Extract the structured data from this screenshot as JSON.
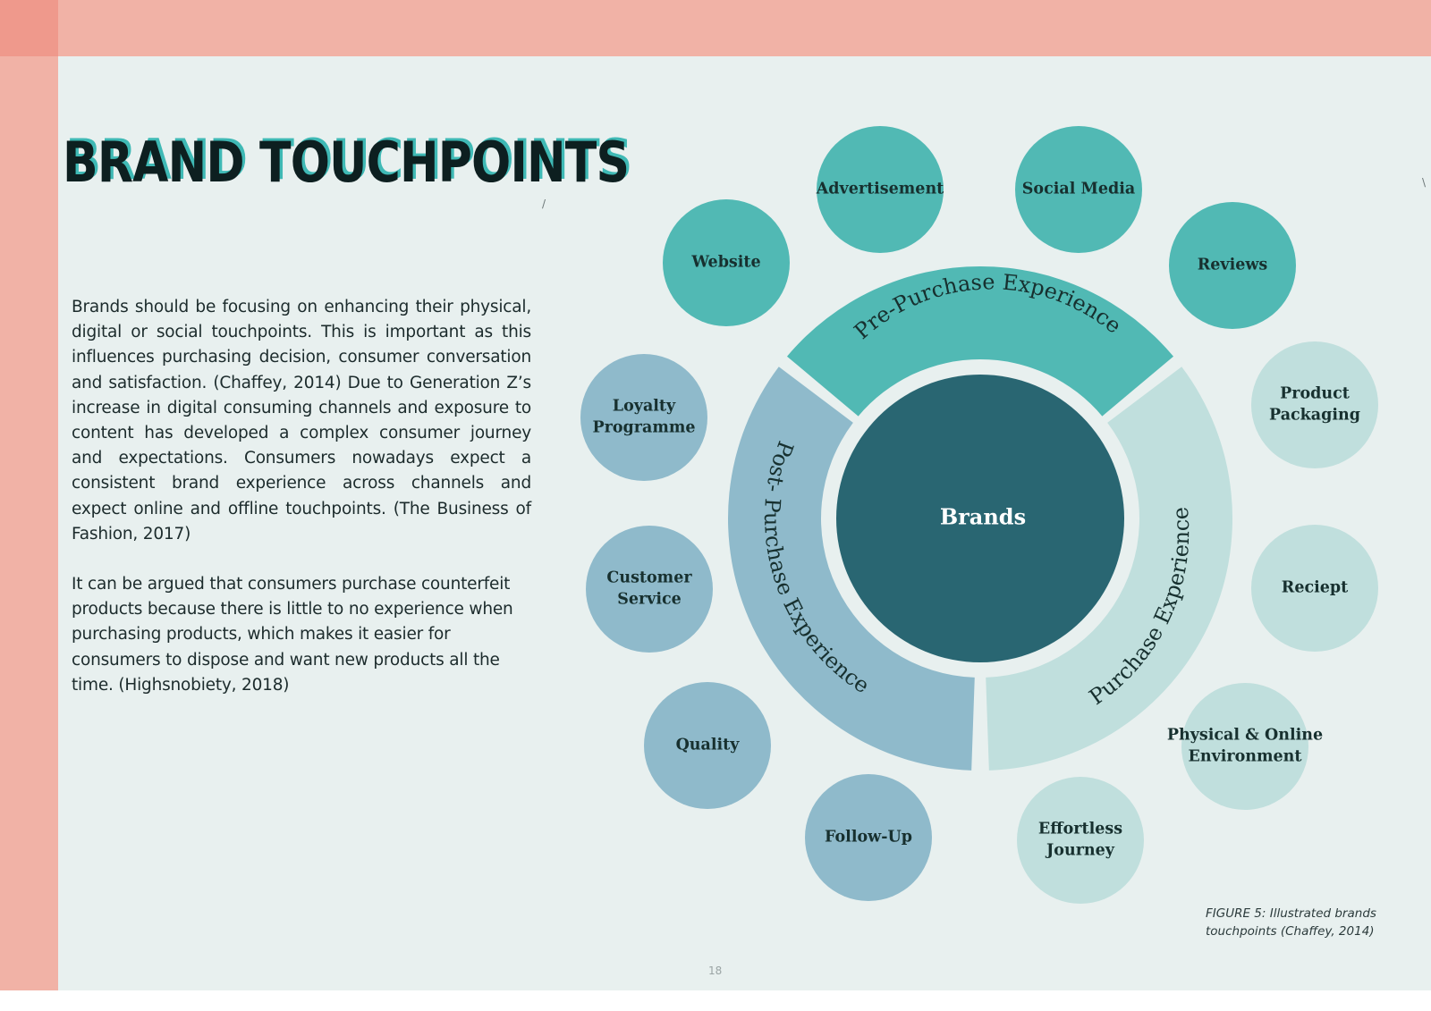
{
  "page": {
    "title": "BRAND TOUCHPOINTS",
    "paragraphs": [
      "Brands should be focusing on enhancing their physical, digital or social touchpoints. This is important as this influences purchasing decision, consumer conversation and satisfaction. (Chaffey, 2014) Due to Generation Z’s increase in digital consuming channels and exposure to content has developed a complex consumer journey and expectations. Consumers nowadays expect a consistent brand experience across channels and expect online and offline touchpoints. (The Business of Fashion, 2017)",
      "It can be argued that consumers purchase counterfeit products because there is little to no experience when purchasing products, which makes it easier for consumers to dispose and want new products all the time. (Highsnobiety, 2018)"
    ],
    "caption": "FIGURE 5: Illustrated brands touchpoints (Chaffey, 2014)",
    "page_number": "18"
  },
  "diagram": {
    "center": "Brands",
    "segments": [
      {
        "label": "Pre-Purchase Experience",
        "color": "#51b9b4"
      },
      {
        "label": "Purchase Experience",
        "color": "#c0dfdd"
      },
      {
        "label": "Post- Purchase Experience",
        "color": "#8fbacb"
      }
    ],
    "touchpoints": {
      "pre": [
        {
          "lines": [
            "Website"
          ]
        },
        {
          "lines": [
            "Advertisement"
          ]
        },
        {
          "lines": [
            "Social Media"
          ]
        },
        {
          "lines": [
            "Reviews"
          ]
        }
      ],
      "purchase": [
        {
          "lines": [
            "Product",
            "Packaging"
          ]
        },
        {
          "lines": [
            "Reciept"
          ]
        },
        {
          "lines": [
            "Physical & Online",
            "Environment"
          ]
        },
        {
          "lines": [
            "Effortless",
            "Journey"
          ]
        }
      ],
      "post": [
        {
          "lines": [
            "Loyalty",
            "Programme"
          ]
        },
        {
          "lines": [
            "Customer",
            "Service"
          ]
        },
        {
          "lines": [
            "Quality"
          ]
        },
        {
          "lines": [
            "Follow-Up"
          ]
        }
      ]
    },
    "colors": {
      "center": "#296672",
      "pre_bubble": "#51b9b4",
      "purchase_bubble": "#c0dfdd",
      "post_bubble": "#8fbacb"
    }
  }
}
